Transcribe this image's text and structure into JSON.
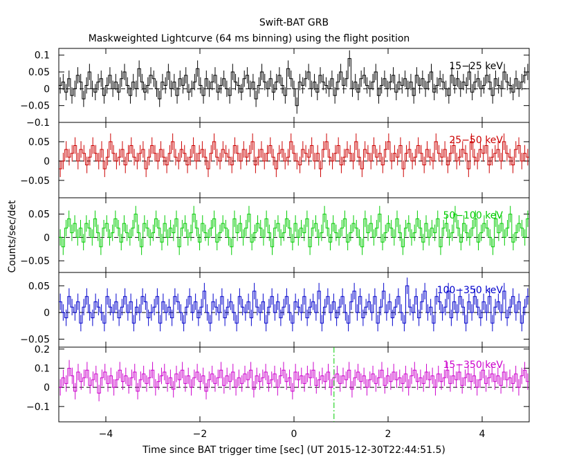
{
  "figure": {
    "title": "Swift-BAT GRB",
    "subtitle": "Maskweighted Lightcurve (64 ms binning) using the flight position",
    "xlabel": "Time since BAT trigger time [sec] (UT 2015-12-30T22:44:51.5)",
    "ylabel": "Counts/sec/det"
  },
  "chart_data": {
    "type": "line",
    "title": "Swift-BAT GRB",
    "subtitle": "Maskweighted Lightcurve (64 ms binning) using the flight position",
    "xlabel": "Time since BAT trigger time [sec] (UT 2015-12-30T22:44:51.5)",
    "ylabel": "Counts/sec/det",
    "xlim": [
      -5,
      5
    ],
    "x_ticks": [
      "−4",
      "−2",
      "0",
      "2",
      "4"
    ],
    "x_tick_values": [
      -4,
      -2,
      0,
      2,
      4
    ],
    "bin_width_sec": 0.064,
    "marker_line_x": 0.85,
    "marker_line_color": "#00cc00",
    "zero_line": "dashed",
    "panels": [
      {
        "band": "15−25 keV",
        "color": "#000000",
        "ylim": [
          -0.1,
          0.12
        ],
        "ticks": [
          {
            "v": 0.1,
            "label": "0.1"
          },
          {
            "v": 0.05,
            "label": "0.05"
          },
          {
            "v": 0,
            "label": "0"
          },
          {
            "v": -0.05,
            "label": "−0.05"
          },
          {
            "v": -0.1,
            "label": "−0.1"
          }
        ],
        "values": [
          0.01,
          0.02,
          -0.01,
          0.03,
          -0.02,
          0.0,
          0.04,
          0.02,
          -0.03,
          0.01,
          0.05,
          0.0,
          -0.01,
          0.02,
          0.03,
          -0.02,
          0.01,
          0.04,
          0.0,
          0.02,
          -0.01,
          0.03,
          0.05,
          0.01,
          -0.02,
          0.02,
          0.0,
          0.06,
          0.02,
          -0.01,
          0.01,
          0.04,
          0.03,
          0.0,
          -0.03,
          0.02,
          0.01,
          0.05,
          0.0,
          0.02,
          -0.02,
          0.03,
          0.01,
          0.04,
          -0.01,
          0.0,
          0.02,
          0.06,
          0.01,
          -0.02,
          0.03,
          0.0,
          0.02,
          0.04,
          -0.01,
          0.01,
          0.03,
          0.0,
          -0.02,
          0.05,
          0.02,
          0.01,
          -0.01,
          0.03,
          0.04,
          0.0,
          0.02,
          -0.03,
          0.01,
          0.05,
          0.02,
          0.0,
          0.03,
          -0.01,
          0.02,
          0.04,
          0.01,
          -0.02,
          0.06,
          0.03,
          0.0,
          -0.05,
          0.02,
          0.01,
          0.03,
          0.05,
          0.0,
          0.02,
          -0.01,
          0.04,
          0.02,
          0.01,
          0.0,
          0.03,
          -0.02,
          0.02,
          0.05,
          0.01,
          0.03,
          0.09,
          0.0,
          0.02,
          -0.01,
          0.03,
          0.04,
          0.01,
          0.0,
          0.02,
          0.05,
          -0.02,
          0.01,
          0.03,
          0.0,
          0.02,
          0.04,
          -0.01,
          0.02,
          0.01,
          0.03,
          0.0,
          0.02,
          -0.02,
          0.04,
          0.01,
          0.03,
          0.0,
          0.02,
          0.05,
          -0.01,
          0.01,
          0.03,
          0.02,
          0.0,
          -0.02,
          0.04,
          0.01,
          0.03,
          0.0,
          0.02,
          0.01,
          0.05,
          -0.01,
          0.02,
          0.03,
          0.0,
          0.01,
          0.04,
          0.02,
          -0.02,
          0.03,
          0.01,
          0.0,
          0.05,
          0.02,
          0.01,
          -0.01,
          0.03,
          0.0,
          0.02,
          0.04,
          0.05
        ]
      },
      {
        "band": "25−50 keV",
        "color": "#cc0000",
        "ylim": [
          -0.095,
          0.1
        ],
        "ticks": [
          {
            "v": 0.05,
            "label": "0.05"
          },
          {
            "v": 0,
            "label": "0"
          },
          {
            "v": -0.05,
            "label": "−0.05"
          }
        ],
        "values": [
          -0.02,
          0.0,
          0.03,
          0.01,
          0.02,
          0.04,
          0.0,
          0.03,
          0.02,
          -0.01,
          0.01,
          0.04,
          0.02,
          0.0,
          0.03,
          -0.02,
          0.01,
          0.05,
          0.02,
          0.0,
          0.01,
          0.03,
          -0.01,
          0.02,
          0.04,
          0.01,
          0.0,
          0.02,
          0.03,
          -0.02,
          0.01,
          0.04,
          0.02,
          0.0,
          0.03,
          0.01,
          -0.01,
          0.02,
          0.05,
          0.01,
          0.0,
          0.03,
          0.02,
          -0.01,
          0.01,
          0.04,
          0.0,
          0.02,
          0.03,
          0.01,
          -0.02,
          0.02,
          0.05,
          0.01,
          0.0,
          0.03,
          0.02,
          0.01,
          -0.01,
          0.04,
          0.02,
          0.0,
          0.03,
          0.01,
          0.02,
          0.05,
          -0.01,
          0.01,
          0.03,
          0.0,
          0.02,
          0.04,
          0.01,
          -0.02,
          0.02,
          0.03,
          0.0,
          0.01,
          0.05,
          0.02,
          0.0,
          -0.01,
          0.03,
          0.02,
          0.01,
          0.04,
          0.0,
          0.02,
          -0.02,
          0.03,
          0.05,
          0.01,
          0.0,
          0.02,
          0.04,
          -0.01,
          0.01,
          0.03,
          0.02,
          0.0,
          0.05,
          0.01,
          -0.02,
          0.03,
          0.02,
          0.0,
          0.04,
          0.01,
          0.02,
          -0.01,
          0.03,
          0.05,
          0.0,
          0.02,
          0.01,
          0.04,
          -0.02,
          0.02,
          0.03,
          0.0,
          0.01,
          0.04,
          0.02,
          -0.01,
          0.03,
          0.01,
          0.0,
          0.05,
          0.02,
          0.01,
          0.03,
          -0.01,
          0.02,
          0.04,
          0.0,
          0.01,
          0.03,
          0.02,
          -0.02,
          0.05,
          0.01,
          0.0,
          0.03,
          0.02,
          0.04,
          -0.01,
          0.01,
          0.02,
          0.03,
          0.0,
          0.05,
          0.02,
          0.01,
          -0.01,
          0.03,
          0.04,
          0.0,
          0.02,
          0.01
        ]
      },
      {
        "band": "50−100 keV",
        "color": "#00cc00",
        "ylim": [
          -0.075,
          0.085
        ],
        "ticks": [
          {
            "v": 0.05,
            "label": "0.05"
          },
          {
            "v": 0,
            "label": "0"
          },
          {
            "v": -0.05,
            "label": "−0.05"
          }
        ],
        "values": [
          0.0,
          -0.02,
          0.02,
          0.04,
          0.01,
          0.03,
          0.0,
          0.02,
          -0.01,
          0.03,
          0.02,
          0.0,
          0.04,
          0.01,
          -0.02,
          0.02,
          0.03,
          0.0,
          0.01,
          0.04,
          0.02,
          -0.01,
          0.03,
          0.01,
          0.0,
          0.02,
          0.05,
          0.01,
          -0.02,
          0.03,
          0.02,
          0.0,
          0.01,
          0.04,
          0.02,
          -0.01,
          0.03,
          0.0,
          0.02,
          0.01,
          0.04,
          -0.02,
          0.02,
          0.03,
          0.0,
          0.01,
          0.05,
          0.02,
          -0.01,
          0.03,
          0.01,
          0.0,
          0.02,
          0.04,
          -0.01,
          0.01,
          0.03,
          0.02,
          0.0,
          -0.02,
          0.04,
          0.01,
          0.03,
          0.0,
          0.02,
          0.05,
          -0.01,
          0.01,
          0.03,
          0.02,
          0.0,
          0.04,
          0.01,
          -0.02,
          0.02,
          0.03,
          0.0,
          0.01,
          0.04,
          0.02,
          -0.01,
          0.03,
          0.0,
          0.02,
          0.01,
          0.04,
          -0.02,
          0.02,
          0.03,
          0.0,
          0.01,
          0.05,
          0.02,
          -0.01,
          0.03,
          0.01,
          0.0,
          0.02,
          0.04,
          -0.01,
          0.01,
          0.03,
          0.02,
          0.0,
          -0.02,
          0.04,
          0.01,
          0.03,
          0.0,
          0.02,
          0.05,
          -0.01,
          0.01,
          0.03,
          0.02,
          0.0,
          0.04,
          0.01,
          -0.02,
          0.02,
          0.03,
          0.0,
          0.01,
          0.04,
          0.02,
          -0.01,
          0.03,
          0.0,
          0.02,
          0.01,
          0.04,
          -0.02,
          0.02,
          0.03,
          0.0,
          0.01,
          0.05,
          0.02,
          -0.01,
          0.03,
          0.01,
          0.0,
          0.02,
          0.04,
          -0.01,
          0.01,
          0.03,
          0.02,
          0.0,
          -0.02,
          0.04,
          0.01,
          0.03,
          0.0,
          0.02,
          0.05,
          -0.01,
          0.01,
          0.03,
          0.02,
          0.0,
          0.04
        ]
      },
      {
        "band": "100−350 keV",
        "color": "#0000cc",
        "ylim": [
          -0.065,
          0.075
        ],
        "ticks": [
          {
            "v": 0.05,
            "label": "0.05"
          },
          {
            "v": 0,
            "label": "0"
          },
          {
            "v": -0.05,
            "label": "−0.05"
          }
        ],
        "values": [
          0.02,
          0.0,
          -0.01,
          0.03,
          0.01,
          0.0,
          0.02,
          -0.02,
          0.01,
          0.03,
          0.0,
          -0.01,
          0.02,
          0.01,
          0.0,
          -0.02,
          0.03,
          0.01,
          0.0,
          0.02,
          -0.01,
          0.01,
          0.03,
          0.0,
          0.02,
          -0.02,
          0.01,
          0.0,
          0.03,
          0.02,
          -0.01,
          0.0,
          0.01,
          0.03,
          -0.02,
          0.02,
          0.0,
          0.01,
          -0.01,
          0.03,
          0.02,
          0.0,
          -0.02,
          0.01,
          0.03,
          0.0,
          0.02,
          -0.01,
          0.01,
          0.04,
          0.0,
          -0.02,
          0.02,
          0.01,
          0.0,
          0.03,
          -0.01,
          0.01,
          0.02,
          0.0,
          -0.02,
          0.03,
          0.01,
          0.0,
          0.02,
          -0.01,
          0.04,
          0.01,
          0.0,
          0.02,
          -0.02,
          0.01,
          0.03,
          0.0,
          0.02,
          -0.01,
          0.01,
          0.03,
          0.0,
          -0.02,
          0.02,
          0.01,
          0.0,
          0.03,
          -0.01,
          0.01,
          0.02,
          0.0,
          0.04,
          -0.02,
          0.01,
          0.03,
          0.0,
          0.02,
          -0.01,
          0.01,
          0.03,
          0.0,
          -0.02,
          0.02,
          0.04,
          0.0,
          0.03,
          -0.01,
          0.01,
          0.02,
          0.0,
          0.03,
          -0.02,
          0.01,
          0.04,
          0.0,
          0.02,
          -0.01,
          0.01,
          0.03,
          0.0,
          -0.02,
          0.05,
          0.01,
          0.0,
          0.03,
          -0.01,
          0.02,
          0.04,
          0.0,
          0.01,
          -0.02,
          0.03,
          0.02,
          0.0,
          0.01,
          0.04,
          -0.01,
          0.02,
          0.0,
          0.03,
          0.01,
          -0.02,
          0.02,
          0.0,
          0.03,
          0.01,
          -0.01,
          0.02,
          0.0,
          0.03,
          -0.02,
          0.01,
          0.02,
          0.0,
          0.04,
          -0.01,
          0.01,
          0.03,
          0.0,
          0.02,
          -0.02,
          0.01,
          0.03
        ]
      },
      {
        "band": "15−350 keV",
        "color": "#cc00cc",
        "ylim": [
          -0.18,
          0.21
        ],
        "ticks": [
          {
            "v": 0.2,
            "label": "0.2"
          },
          {
            "v": 0.1,
            "label": "0.1"
          },
          {
            "v": 0,
            "label": "0"
          },
          {
            "v": -0.1,
            "label": "−0.1"
          }
        ],
        "values": [
          0.0,
          0.05,
          0.02,
          0.1,
          0.06,
          -0.02,
          0.08,
          0.03,
          0.05,
          0.09,
          0.01,
          0.04,
          0.07,
          -0.03,
          0.05,
          0.08,
          0.02,
          0.06,
          0.0,
          0.04,
          0.09,
          0.03,
          0.06,
          0.01,
          0.05,
          0.08,
          -0.02,
          0.04,
          0.07,
          0.02,
          0.05,
          0.09,
          0.0,
          0.03,
          0.06,
          0.08,
          0.02,
          0.05,
          -0.01,
          0.07,
          0.04,
          0.09,
          0.02,
          0.06,
          0.0,
          0.05,
          0.08,
          0.03,
          0.06,
          -0.02,
          0.04,
          0.07,
          0.02,
          0.05,
          0.09,
          0.01,
          0.06,
          0.03,
          0.08,
          0.0,
          0.05,
          0.02,
          0.07,
          0.04,
          0.09,
          -0.01,
          0.06,
          0.03,
          0.05,
          0.08,
          0.02,
          0.04,
          0.07,
          0.0,
          0.06,
          0.09,
          0.03,
          0.05,
          -0.02,
          0.08,
          0.04,
          0.06,
          0.02,
          0.07,
          0.05,
          0.09,
          0.01,
          0.04,
          0.06,
          0.03,
          0.08,
          0.0,
          0.05,
          0.07,
          0.02,
          0.06,
          0.04,
          0.09,
          -0.01,
          0.05,
          0.08,
          0.03,
          0.06,
          0.0,
          0.04,
          0.07,
          0.02,
          0.05,
          0.09,
          0.01,
          0.06,
          0.03,
          0.08,
          0.04,
          0.05,
          0.02,
          0.07,
          0.0,
          0.06,
          0.09,
          0.03,
          0.05,
          0.02,
          0.08,
          0.04,
          0.06,
          0.0,
          0.07,
          0.03,
          0.05,
          0.09,
          0.02,
          0.06,
          0.04,
          0.08,
          0.01,
          0.05,
          0.07,
          0.03,
          0.06,
          0.0,
          0.04,
          0.09,
          0.02,
          0.05,
          0.07,
          0.03,
          0.06,
          0.01,
          0.08,
          0.04,
          0.05,
          0.02,
          0.07,
          0.0,
          0.06,
          0.09,
          0.03
        ]
      }
    ]
  }
}
